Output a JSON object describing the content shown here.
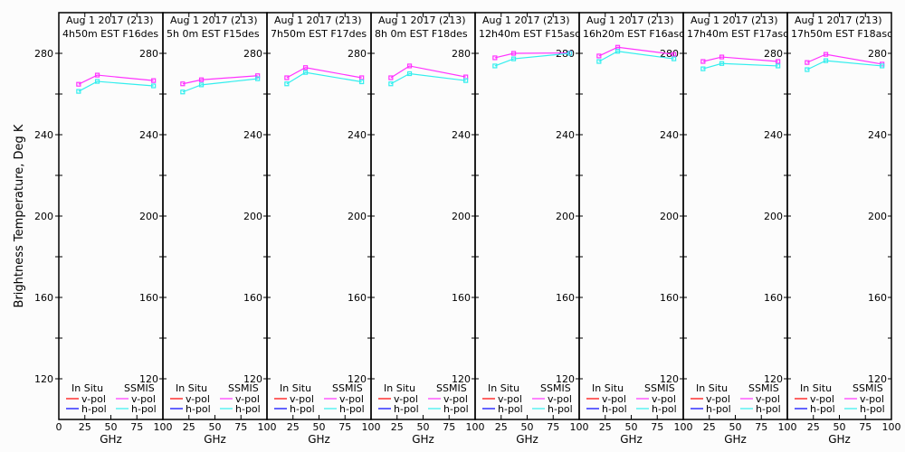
{
  "chart_data": [
    {
      "type": "line",
      "title": [
        "Aug 1 2017 (213)",
        "4h50m  EST  F16des"
      ],
      "x": [
        19,
        37,
        91
      ],
      "series": [
        {
          "name": "SSMIS v-pol",
          "color": "#ff33ff",
          "values": [
            264.8,
            269.3,
            266.6
          ]
        },
        {
          "name": "SSMIS h-pol",
          "color": "#33eeee",
          "values": [
            261.3,
            266.2,
            264.0
          ]
        }
      ]
    },
    {
      "type": "line",
      "title": [
        "Aug 1 2017 (213)",
        "5h  0m  EST  F15des"
      ],
      "x": [
        19,
        37,
        91
      ],
      "series": [
        {
          "name": "SSMIS v-pol",
          "color": "#ff33ff",
          "values": [
            265.0,
            267.0,
            269.0
          ]
        },
        {
          "name": "SSMIS h-pol",
          "color": "#33eeee",
          "values": [
            261.0,
            264.5,
            267.5
          ]
        }
      ]
    },
    {
      "type": "line",
      "title": [
        "Aug 1 2017 (213)",
        "7h50m  EST  F17des"
      ],
      "x": [
        19,
        37,
        91
      ],
      "series": [
        {
          "name": "SSMIS v-pol",
          "color": "#ff33ff",
          "values": [
            268.0,
            273.0,
            268.0
          ]
        },
        {
          "name": "SSMIS h-pol",
          "color": "#33eeee",
          "values": [
            265.0,
            270.6,
            266.0
          ]
        }
      ]
    },
    {
      "type": "line",
      "title": [
        "Aug 1 2017 (213)",
        "8h  0m  EST  F18des"
      ],
      "x": [
        19,
        37,
        91
      ],
      "series": [
        {
          "name": "SSMIS v-pol",
          "color": "#ff33ff",
          "values": [
            268.0,
            273.8,
            268.4
          ]
        },
        {
          "name": "SSMIS h-pol",
          "color": "#33eeee",
          "values": [
            265.0,
            270.0,
            266.6
          ]
        }
      ]
    },
    {
      "type": "line",
      "title": [
        "Aug 1 2017 (213)",
        "12h40m  EST  F15asc"
      ],
      "x": [
        19,
        37,
        91
      ],
      "series": [
        {
          "name": "SSMIS v-pol",
          "color": "#ff33ff",
          "values": [
            277.8,
            280.0,
            280.2
          ]
        },
        {
          "name": "SSMIS h-pol",
          "color": "#33eeee",
          "values": [
            273.8,
            277.3,
            280.0
          ]
        }
      ]
    },
    {
      "type": "line",
      "title": [
        "Aug 1 2017 (213)",
        "16h20m  EST  F16asc"
      ],
      "x": [
        19,
        37,
        91
      ],
      "series": [
        {
          "name": "SSMIS v-pol",
          "color": "#ff33ff",
          "values": [
            278.7,
            283.0,
            279.5
          ]
        },
        {
          "name": "SSMIS h-pol",
          "color": "#33eeee",
          "values": [
            276.0,
            281.0,
            277.3
          ]
        }
      ]
    },
    {
      "type": "line",
      "title": [
        "Aug 1 2017 (213)",
        "17h40m  EST  F17asc"
      ],
      "x": [
        19,
        37,
        91
      ],
      "series": [
        {
          "name": "SSMIS v-pol",
          "color": "#ff33ff",
          "values": [
            276.0,
            278.2,
            276.0
          ]
        },
        {
          "name": "SSMIS h-pol",
          "color": "#33eeee",
          "values": [
            272.4,
            275.0,
            273.8
          ]
        }
      ]
    },
    {
      "type": "line",
      "title": [
        "Aug 1 2017 (213)",
        "17h50m  EST  F18asc"
      ],
      "x": [
        19,
        37,
        91
      ],
      "series": [
        {
          "name": "SSMIS v-pol",
          "color": "#ff33ff",
          "values": [
            275.5,
            279.5,
            274.7
          ]
        },
        {
          "name": "SSMIS h-pol",
          "color": "#33eeee",
          "values": [
            272.0,
            276.4,
            273.8
          ]
        }
      ]
    }
  ],
  "axes": {
    "ylabel": "Brightness Temperature, Deg K",
    "xlabel": "GHz",
    "ylim": [
      100,
      300
    ],
    "xlim": [
      0,
      100
    ],
    "yticklabels": [
      "120",
      "160",
      "200",
      "240",
      "280"
    ],
    "xticklabels": [
      "0",
      "25",
      "50",
      "75",
      "100"
    ]
  },
  "legend": {
    "insitu_header": "In Situ",
    "ssmis_header": "SSMIS",
    "items": [
      {
        "label": "v-pol",
        "insitu_color": "#ff0000",
        "ssmis_color": "#ff33ff"
      },
      {
        "label": "h-pol",
        "insitu_color": "#0000ff",
        "ssmis_color": "#33eeee"
      }
    ]
  }
}
